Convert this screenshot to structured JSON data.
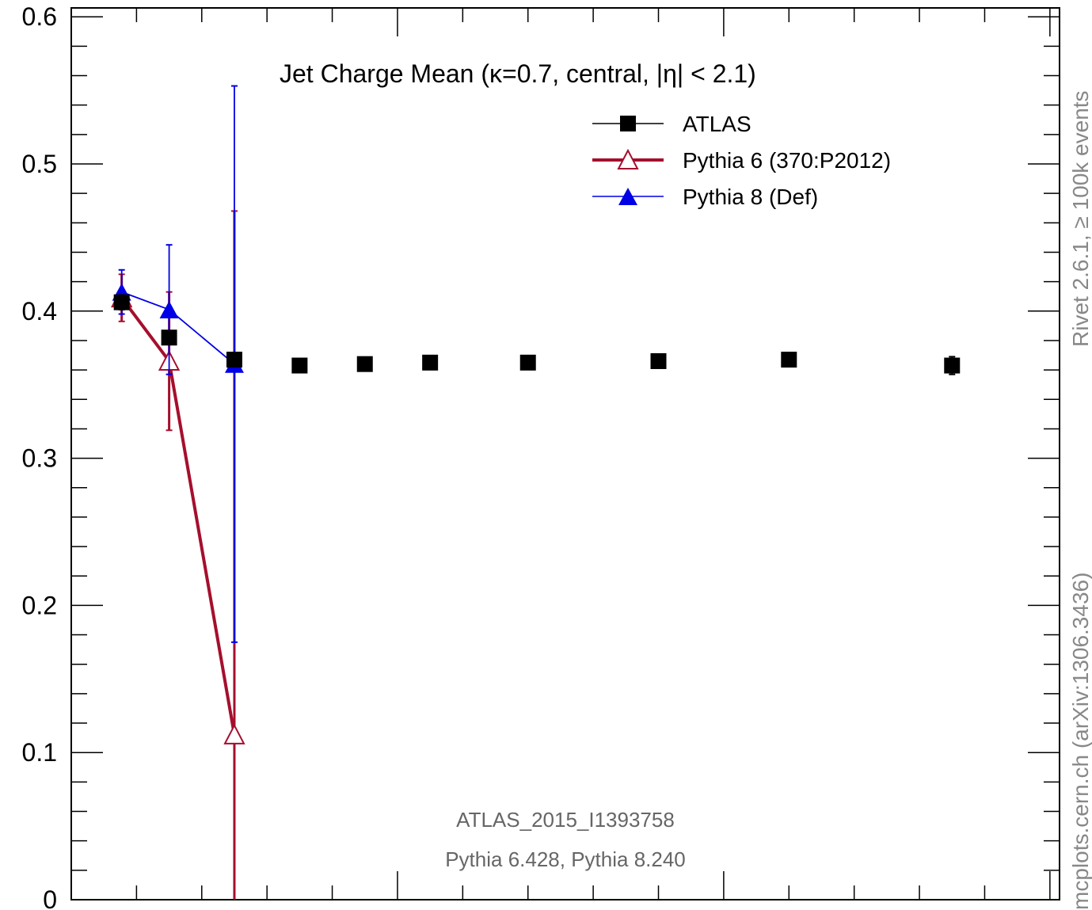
{
  "chart_data": {
    "type": "scatter",
    "title": "Jet Charge Mean (κ=0.7, central, |η| < 2.1)",
    "xlabel": "",
    "ylabel": "",
    "ylim": [
      0,
      0.6
    ],
    "yticks": [
      "0",
      "0.1",
      "0.2",
      "0.3",
      "0.4",
      "0.5",
      "0.6"
    ],
    "legend_position": "top-right",
    "grid": false,
    "series": [
      {
        "name": "ATLAS",
        "color": "#000000",
        "marker": "filled-square",
        "x": [
          0.17,
          0.33,
          0.55,
          0.77,
          0.99,
          1.21,
          1.54,
          1.98,
          2.42,
          2.97
        ],
        "y": [
          0.406,
          0.382,
          0.367,
          0.363,
          0.364,
          0.365,
          0.365,
          0.366,
          0.367,
          0.363
        ],
        "err": [
          0.005,
          0.004,
          0.003,
          0.002,
          0.002,
          0.002,
          0.002,
          0.002,
          0.002,
          0.006
        ]
      },
      {
        "name": "Pythia 6 (370:P2012)",
        "color": "#a50f2d",
        "marker": "open-triangle",
        "x": [
          0.17,
          0.33,
          0.55
        ],
        "y": [
          0.409,
          0.366,
          0.112
        ],
        "err": [
          0.016,
          0.047,
          0.356
        ]
      },
      {
        "name": "Pythia 8 (Def)",
        "color": "#0000e6",
        "marker": "filled-triangle",
        "x": [
          0.17,
          0.33,
          0.55
        ],
        "y": [
          0.413,
          0.401,
          0.364
        ],
        "err": [
          0.015,
          0.044,
          0.189
        ]
      }
    ]
  },
  "annotations": {
    "analysis_id": "ATLAS_2015_I1393758",
    "generators": "Pythia 6.428, Pythia 8.240",
    "side_label": "mcplots.cern.ch (arXiv:1306.3436)",
    "rivet_label": "Rivet 2.6.1,  ≥ 100k events"
  }
}
